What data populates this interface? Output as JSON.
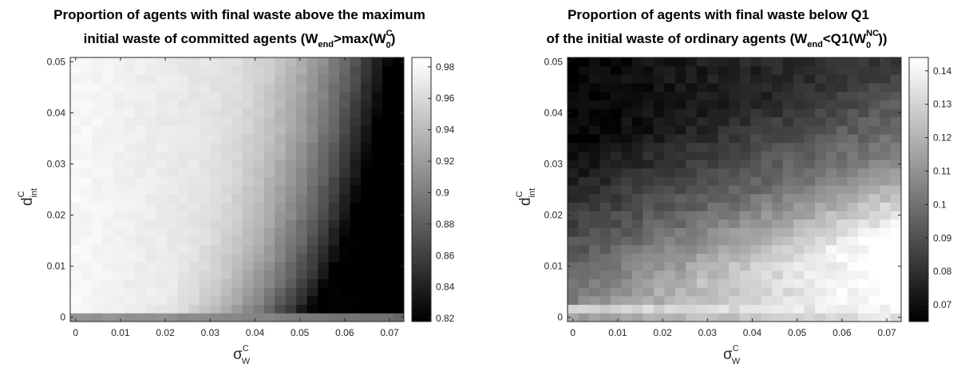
{
  "chart_data": [
    {
      "type": "heatmap",
      "title_line1": "Proportion of agents with final waste above the maximum",
      "title_line2_main": "initial waste of committed agents (W",
      "title_line2_sub1": "end",
      "title_line2_mid": ">max(W",
      "title_line2_sub2": "0",
      "title_line2_sup2": "C",
      "title_line2_end": ")",
      "xlabel_main": "σ",
      "xlabel_sub": "W",
      "xlabel_sup": "C",
      "ylabel_main": "d",
      "ylabel_sub": "int",
      "ylabel_sup": "C",
      "x_range": [
        0,
        0.072
      ],
      "y_range": [
        0,
        0.05
      ],
      "grid_size": [
        31,
        31
      ],
      "x_ticks": [
        "0",
        "0.01",
        "0.02",
        "0.03",
        "0.04",
        "0.05",
        "0.06",
        "0.07"
      ],
      "y_ticks": [
        "0",
        "0.01",
        "0.02",
        "0.03",
        "0.04",
        "0.05"
      ],
      "colorbar_range": [
        0.818,
        0.986
      ],
      "colorbar_ticks": [
        "0.82",
        "0.84",
        "0.86",
        "0.88",
        "0.9",
        "0.92",
        "0.94",
        "0.96",
        "0.98"
      ],
      "colormap": "gray"
    },
    {
      "type": "heatmap",
      "title_line1": "Proportion of agents with final waste below Q1",
      "title_line2_main": "of the initial waste of ordinary agents (W",
      "title_line2_sub1": "end",
      "title_line2_mid": "<Q1(W",
      "title_line2_sub2": "0",
      "title_line2_sup2": "NC",
      "title_line2_end": "))",
      "xlabel_main": "σ",
      "xlabel_sub": "W",
      "xlabel_sup": "C",
      "ylabel_main": "d",
      "ylabel_sub": "int",
      "ylabel_sup": "C",
      "x_range": [
        0,
        0.072
      ],
      "y_range": [
        0,
        0.05
      ],
      "grid_size": [
        31,
        31
      ],
      "x_ticks": [
        "0",
        "0.01",
        "0.02",
        "0.03",
        "0.04",
        "0.05",
        "0.06",
        "0.07"
      ],
      "y_ticks": [
        "0",
        "0.01",
        "0.02",
        "0.03",
        "0.04",
        "0.05"
      ],
      "colorbar_range": [
        0.065,
        0.144
      ],
      "colorbar_ticks": [
        "0.07",
        "0.08",
        "0.09",
        "0.1",
        "0.11",
        "0.12",
        "0.13",
        "0.14"
      ],
      "colormap": "gray"
    }
  ]
}
